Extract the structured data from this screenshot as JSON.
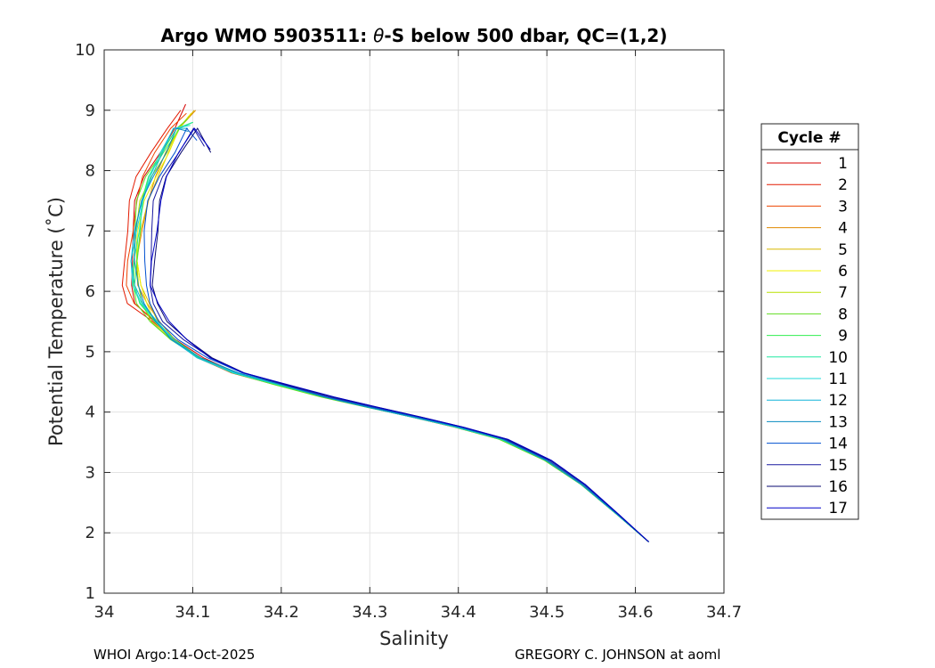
{
  "chart_data": {
    "type": "line",
    "title_main": "Argo WMO 5903511: ",
    "title_theta": "θ",
    "title_rest": "-S below 500 dbar,  QC=(1,2)",
    "xlabel": "Salinity",
    "ylabel": "Potential Temperature (˚C)",
    "xlim": [
      34,
      34.7
    ],
    "ylim": [
      1,
      10
    ],
    "xticks": [
      "34",
      "34.1",
      "34.2",
      "34.3",
      "34.4",
      "34.5",
      "34.6",
      "34.7"
    ],
    "yticks": [
      "1",
      "2",
      "3",
      "4",
      "5",
      "6",
      "7",
      "8",
      "9",
      "10"
    ],
    "grid": true,
    "legend_title": "Cycle #",
    "legend_position": "right",
    "base_profile": [
      [
        34.1,
        9.0
      ],
      [
        34.085,
        8.7
      ],
      [
        34.07,
        8.3
      ],
      [
        34.055,
        7.9
      ],
      [
        34.045,
        7.5
      ],
      [
        34.04,
        7.0
      ],
      [
        34.037,
        6.5
      ],
      [
        34.038,
        6.1
      ],
      [
        34.045,
        5.8
      ],
      [
        34.06,
        5.5
      ],
      [
        34.08,
        5.2
      ],
      [
        34.11,
        4.9
      ],
      [
        34.15,
        4.65
      ],
      [
        34.2,
        4.45
      ],
      [
        34.25,
        4.25
      ],
      [
        34.3,
        4.08
      ],
      [
        34.35,
        3.92
      ],
      [
        34.4,
        3.75
      ],
      [
        34.45,
        3.55
      ],
      [
        34.5,
        3.2
      ],
      [
        34.54,
        2.8
      ],
      [
        34.58,
        2.3
      ],
      [
        34.615,
        1.85
      ]
    ],
    "series": [
      {
        "label": "1",
        "color": "#d40000",
        "dS": 0.004,
        "dT": 0.1,
        "warp": -0.012
      },
      {
        "label": "2",
        "color": "#e31a00",
        "dS": 0.002,
        "dT": 0.0,
        "warp": -0.018
      },
      {
        "label": "3",
        "color": "#ee4400",
        "dS": 0.0,
        "dT": -0.05,
        "warp": -0.01
      },
      {
        "label": "4",
        "color": "#e08a00",
        "dS": -0.002,
        "dT": 0.0,
        "warp": 0.004
      },
      {
        "label": "5",
        "color": "#d8b800",
        "dS": -0.003,
        "dT": 0.0,
        "warp": 0.006
      },
      {
        "label": "6",
        "color": "#f0f000",
        "dS": -0.004,
        "dT": -0.05,
        "warp": 0.005
      },
      {
        "label": "7",
        "color": "#b8e000",
        "dS": -0.005,
        "dT": -0.1,
        "warp": 0.003
      },
      {
        "label": "8",
        "color": "#60dd20",
        "dS": -0.006,
        "dT": -0.15,
        "warp": 0.0
      },
      {
        "label": "9",
        "color": "#30ee50",
        "dS": -0.004,
        "dT": -0.2,
        "warp": 0.002
      },
      {
        "label": "10",
        "color": "#20e8a0",
        "dS": -0.003,
        "dT": -0.2,
        "warp": 0.0
      },
      {
        "label": "11",
        "color": "#20d8d8",
        "dS": -0.002,
        "dT": -0.25,
        "warp": -0.002
      },
      {
        "label": "12",
        "color": "#10b4d8",
        "dS": -0.001,
        "dT": -0.3,
        "warp": -0.003
      },
      {
        "label": "13",
        "color": "#0a8cc0",
        "dS": 0.0,
        "dT": -0.35,
        "warp": -0.002
      },
      {
        "label": "14",
        "color": "#0050d0",
        "dS": 0.003,
        "dT": -0.5,
        "warp": 0.004
      },
      {
        "label": "15",
        "color": "#1a1aa0",
        "dS": 0.005,
        "dT": -0.6,
        "warp": 0.008
      },
      {
        "label": "16",
        "color": "#0a0a70",
        "dS": 0.006,
        "dT": -0.7,
        "warp": 0.012
      },
      {
        "label": "17",
        "color": "#0000c8",
        "dS": 0.007,
        "dT": -0.65,
        "warp": 0.01
      }
    ]
  },
  "footer": {
    "left": "WHOI Argo:14-Oct-2025",
    "right": "GREGORY C. JOHNSON at aoml"
  }
}
